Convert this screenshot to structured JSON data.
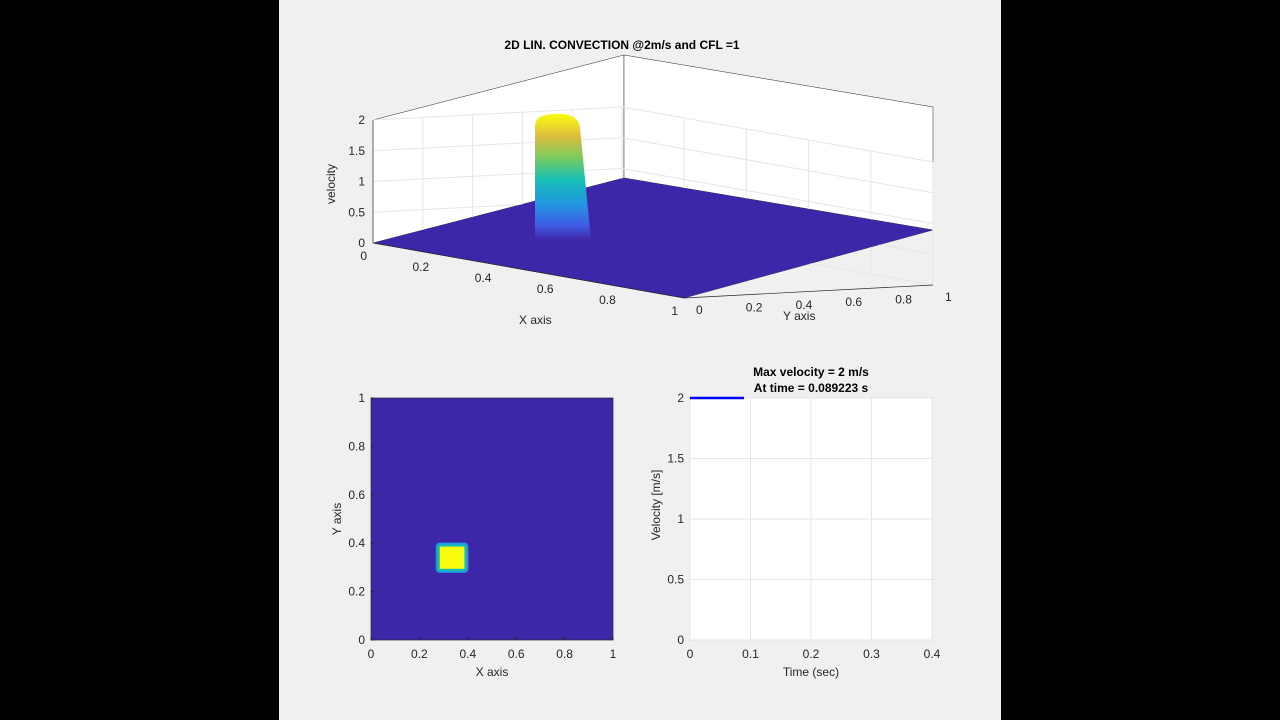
{
  "colors": {
    "frame_background": "#000000",
    "figure_background": "#f0f0f0",
    "axes_background": "#ffffff",
    "grid": "#e6e6e6",
    "field_low": "#3e26a8",
    "field_high": "#f9fb0e",
    "line": "#0000ff"
  },
  "chart_data": [
    {
      "type": "surface",
      "title": "2D LIN. CONVECTION @2m/s and CFL =1",
      "xlabel": "X axis",
      "ylabel": "Y axis",
      "zlabel": "velocity",
      "xlim": [
        0,
        1
      ],
      "ylim": [
        0,
        1
      ],
      "zlim": [
        0,
        2
      ],
      "xticks": [
        "0",
        "0.2",
        "0.4",
        "0.6",
        "0.8",
        "1"
      ],
      "yticks": [
        "0",
        "0.2",
        "0.4",
        "0.6",
        "0.8",
        "1"
      ],
      "zticks": [
        "0",
        "0.5",
        "1",
        "1.5",
        "2"
      ],
      "pulse": {
        "x_range": [
          0.28,
          0.38
        ],
        "y_range": [
          0.28,
          0.38
        ],
        "value": 2
      },
      "background_value": 0,
      "colormap": "parula",
      "grid": true
    },
    {
      "type": "heatmap",
      "title": "",
      "xlabel": "X axis",
      "ylabel": "Y axis",
      "xlim": [
        0,
        1
      ],
      "ylim": [
        0,
        1
      ],
      "xticks": [
        "0",
        "0.2",
        "0.4",
        "0.6",
        "0.8",
        "1"
      ],
      "yticks": [
        "0",
        "0.2",
        "0.4",
        "0.6",
        "0.8",
        "1"
      ],
      "pulse": {
        "x_range": [
          0.28,
          0.39
        ],
        "y_range": [
          0.29,
          0.39
        ],
        "value": 2
      },
      "background_value": 0,
      "colormap": "parula",
      "grid": false
    },
    {
      "type": "line",
      "title_lines": [
        "Max velocity = 2 m/s",
        "At time = 0.089223 s"
      ],
      "xlabel": "Time (sec)",
      "ylabel": "Velocity [m/s]",
      "xlim": [
        0,
        0.4
      ],
      "ylim": [
        0,
        2
      ],
      "xticks": [
        "0",
        "0.1",
        "0.2",
        "0.3",
        "0.4"
      ],
      "yticks": [
        "0",
        "0.5",
        "1",
        "1.5",
        "2"
      ],
      "series": [
        {
          "x": [
            0,
            0.089223
          ],
          "y": [
            2,
            2
          ]
        }
      ],
      "grid": true
    }
  ]
}
